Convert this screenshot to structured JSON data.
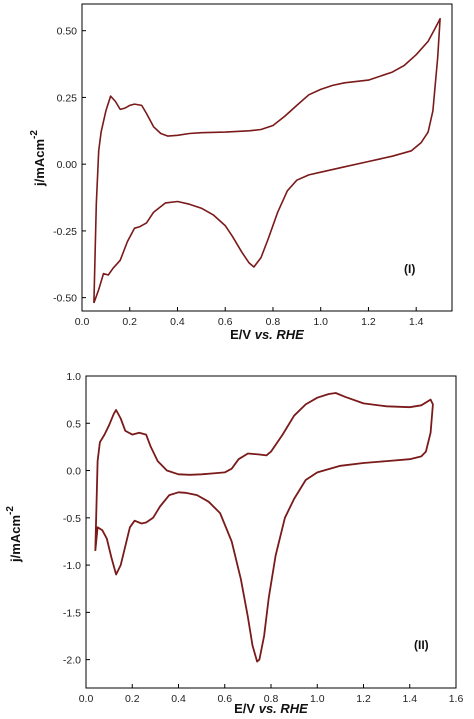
{
  "colors": {
    "curve": "#7a1a1a",
    "frame": "#000000",
    "background": "#ffffff"
  },
  "chart_data": [
    {
      "type": "line",
      "panel_label": "(I)",
      "xlabel_plain": "E/V",
      "xlabel_italic": "vs. RHE",
      "ylabel_base": "j/mAcm",
      "ylabel_sup": "-2",
      "xlim": [
        0.0,
        1.55
      ],
      "ylim": [
        -0.55,
        0.6
      ],
      "xticks": [
        0.0,
        0.2,
        0.4,
        0.6,
        0.8,
        1.0,
        1.2,
        1.4
      ],
      "xtick_labels": [
        "0.0",
        "0.2",
        "0.4",
        "0.6",
        "0.8",
        "1.0",
        "1.2",
        "1.4"
      ],
      "yticks": [
        -0.5,
        -0.25,
        0.0,
        0.25,
        0.5
      ],
      "ytick_labels": [
        "-0.50",
        "-0.25",
        "0.00",
        "0.25",
        "0.50"
      ],
      "grid": false,
      "series": [
        {
          "points": [
            [
              0.05,
              -0.52
            ],
            [
              0.06,
              -0.15
            ],
            [
              0.07,
              0.05
            ],
            [
              0.08,
              0.12
            ],
            [
              0.1,
              0.2
            ],
            [
              0.12,
              0.255
            ],
            [
              0.14,
              0.235
            ],
            [
              0.16,
              0.205
            ],
            [
              0.18,
              0.21
            ],
            [
              0.2,
              0.22
            ],
            [
              0.22,
              0.225
            ],
            [
              0.25,
              0.22
            ],
            [
              0.27,
              0.19
            ],
            [
              0.3,
              0.14
            ],
            [
              0.33,
              0.115
            ],
            [
              0.36,
              0.105
            ],
            [
              0.4,
              0.108
            ],
            [
              0.45,
              0.115
            ],
            [
              0.5,
              0.118
            ],
            [
              0.6,
              0.12
            ],
            [
              0.7,
              0.125
            ],
            [
              0.75,
              0.13
            ],
            [
              0.8,
              0.145
            ],
            [
              0.85,
              0.18
            ],
            [
              0.9,
              0.22
            ],
            [
              0.95,
              0.26
            ],
            [
              1.0,
              0.28
            ],
            [
              1.05,
              0.295
            ],
            [
              1.1,
              0.305
            ],
            [
              1.2,
              0.315
            ],
            [
              1.3,
              0.345
            ],
            [
              1.35,
              0.37
            ],
            [
              1.4,
              0.41
            ],
            [
              1.45,
              0.46
            ],
            [
              1.48,
              0.51
            ],
            [
              1.5,
              0.545
            ],
            [
              1.49,
              0.4
            ],
            [
              1.47,
              0.2
            ],
            [
              1.45,
              0.12
            ],
            [
              1.42,
              0.08
            ],
            [
              1.38,
              0.05
            ],
            [
              1.3,
              0.03
            ],
            [
              1.2,
              0.01
            ],
            [
              1.1,
              -0.01
            ],
            [
              1.0,
              -0.03
            ],
            [
              0.95,
              -0.04
            ],
            [
              0.9,
              -0.06
            ],
            [
              0.86,
              -0.1
            ],
            [
              0.82,
              -0.18
            ],
            [
              0.78,
              -0.28
            ],
            [
              0.75,
              -0.35
            ],
            [
              0.72,
              -0.385
            ],
            [
              0.7,
              -0.37
            ],
            [
              0.67,
              -0.33
            ],
            [
              0.63,
              -0.27
            ],
            [
              0.6,
              -0.23
            ],
            [
              0.55,
              -0.19
            ],
            [
              0.5,
              -0.165
            ],
            [
              0.45,
              -0.15
            ],
            [
              0.4,
              -0.14
            ],
            [
              0.35,
              -0.145
            ],
            [
              0.3,
              -0.18
            ],
            [
              0.27,
              -0.22
            ],
            [
              0.24,
              -0.235
            ],
            [
              0.22,
              -0.24
            ],
            [
              0.19,
              -0.29
            ],
            [
              0.16,
              -0.36
            ],
            [
              0.13,
              -0.39
            ],
            [
              0.11,
              -0.415
            ],
            [
              0.09,
              -0.41
            ],
            [
              0.07,
              -0.47
            ],
            [
              0.05,
              -0.52
            ]
          ]
        }
      ]
    },
    {
      "type": "line",
      "panel_label": "(II)",
      "xlabel_plain": "E/V",
      "xlabel_italic": "vs. RHE",
      "ylabel_base": "j/mAcm",
      "ylabel_sup": "-2",
      "xlim": [
        0.0,
        1.6
      ],
      "ylim": [
        -2.3,
        1.0
      ],
      "xticks": [
        0.0,
        0.2,
        0.4,
        0.6,
        0.8,
        1.0,
        1.2,
        1.4,
        1.6
      ],
      "xtick_labels": [
        "0.0",
        "0.2",
        "0.4",
        "0.6",
        "0.8",
        "1.0",
        "1.2",
        "1.4",
        "1.6"
      ],
      "yticks": [
        -2.0,
        -1.5,
        -1.0,
        -0.5,
        0.0,
        0.5,
        1.0
      ],
      "ytick_labels": [
        "-2.0",
        "-1.5",
        "-1.0",
        "-0.5",
        "0.0",
        "0.5",
        "1.0"
      ],
      "grid": false,
      "series": [
        {
          "points": [
            [
              0.04,
              -0.85
            ],
            [
              0.045,
              -0.4
            ],
            [
              0.05,
              0.1
            ],
            [
              0.06,
              0.3
            ],
            [
              0.08,
              0.38
            ],
            [
              0.1,
              0.48
            ],
            [
              0.12,
              0.6
            ],
            [
              0.13,
              0.64
            ],
            [
              0.15,
              0.55
            ],
            [
              0.17,
              0.42
            ],
            [
              0.2,
              0.38
            ],
            [
              0.23,
              0.4
            ],
            [
              0.26,
              0.38
            ],
            [
              0.28,
              0.25
            ],
            [
              0.31,
              0.1
            ],
            [
              0.35,
              0.0
            ],
            [
              0.4,
              -0.04
            ],
            [
              0.45,
              -0.045
            ],
            [
              0.5,
              -0.04
            ],
            [
              0.55,
              -0.03
            ],
            [
              0.6,
              -0.02
            ],
            [
              0.63,
              0.02
            ],
            [
              0.66,
              0.12
            ],
            [
              0.7,
              0.18
            ],
            [
              0.75,
              0.17
            ],
            [
              0.78,
              0.16
            ],
            [
              0.8,
              0.2
            ],
            [
              0.85,
              0.38
            ],
            [
              0.9,
              0.58
            ],
            [
              0.95,
              0.7
            ],
            [
              1.0,
              0.77
            ],
            [
              1.05,
              0.81
            ],
            [
              1.08,
              0.82
            ],
            [
              1.12,
              0.78
            ],
            [
              1.2,
              0.71
            ],
            [
              1.3,
              0.68
            ],
            [
              1.4,
              0.67
            ],
            [
              1.45,
              0.69
            ],
            [
              1.49,
              0.75
            ],
            [
              1.5,
              0.7
            ],
            [
              1.49,
              0.4
            ],
            [
              1.47,
              0.2
            ],
            [
              1.45,
              0.15
            ],
            [
              1.4,
              0.12
            ],
            [
              1.3,
              0.1
            ],
            [
              1.2,
              0.08
            ],
            [
              1.1,
              0.05
            ],
            [
              1.0,
              -0.02
            ],
            [
              0.95,
              -0.1
            ],
            [
              0.9,
              -0.3
            ],
            [
              0.86,
              -0.5
            ],
            [
              0.82,
              -0.9
            ],
            [
              0.79,
              -1.35
            ],
            [
              0.77,
              -1.75
            ],
            [
              0.75,
              -2.0
            ],
            [
              0.74,
              -2.02
            ],
            [
              0.72,
              -1.85
            ],
            [
              0.7,
              -1.55
            ],
            [
              0.67,
              -1.15
            ],
            [
              0.63,
              -0.75
            ],
            [
              0.58,
              -0.45
            ],
            [
              0.53,
              -0.33
            ],
            [
              0.48,
              -0.26
            ],
            [
              0.43,
              -0.235
            ],
            [
              0.4,
              -0.23
            ],
            [
              0.36,
              -0.26
            ],
            [
              0.32,
              -0.38
            ],
            [
              0.29,
              -0.5
            ],
            [
              0.26,
              -0.55
            ],
            [
              0.24,
              -0.56
            ],
            [
              0.21,
              -0.53
            ],
            [
              0.19,
              -0.6
            ],
            [
              0.17,
              -0.8
            ],
            [
              0.15,
              -1.0
            ],
            [
              0.13,
              -1.1
            ],
            [
              0.11,
              -0.92
            ],
            [
              0.09,
              -0.72
            ],
            [
              0.07,
              -0.63
            ],
            [
              0.05,
              -0.6
            ],
            [
              0.04,
              -0.85
            ]
          ]
        }
      ]
    }
  ]
}
